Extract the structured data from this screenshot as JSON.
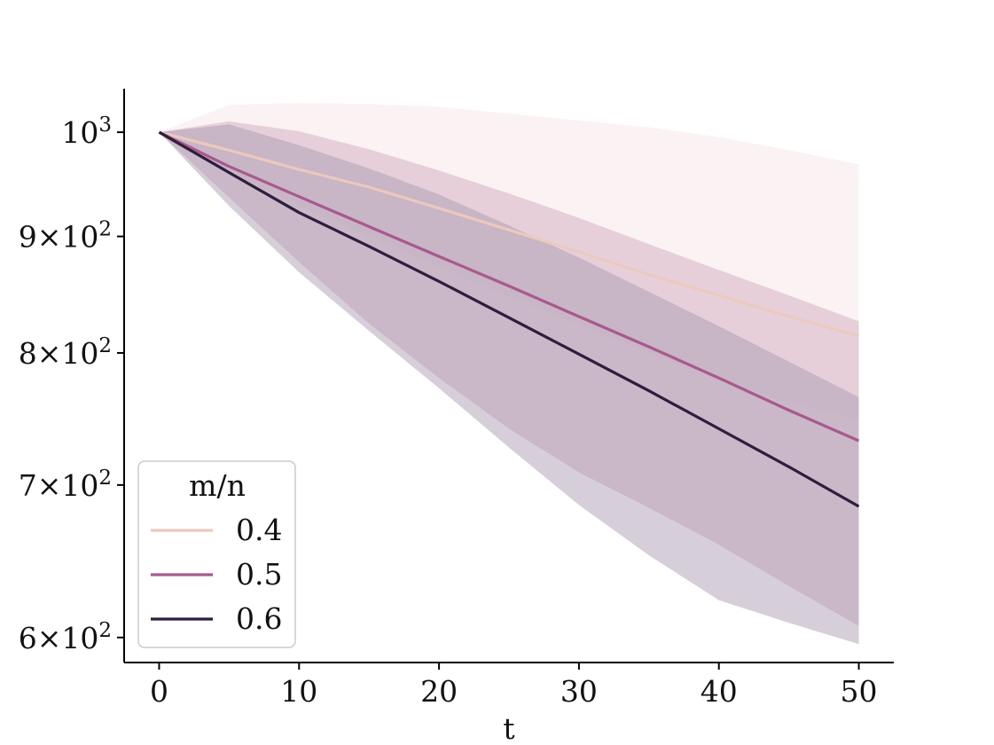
{
  "chart_data": {
    "type": "line",
    "xlabel": "t",
    "ylabel": "",
    "xlim": [
      -2.5,
      52.5
    ],
    "ylim": [
      585,
      1045
    ],
    "yscale": "log",
    "x_ticks": [
      0,
      10,
      20,
      30,
      40,
      50
    ],
    "x_tick_labels": [
      "0",
      "10",
      "20",
      "30",
      "40",
      "50"
    ],
    "y_ticks": [
      {
        "value": 1000,
        "base": "10",
        "exp": "3",
        "mult": ""
      },
      {
        "value": 900,
        "mult": "9",
        "base": "10",
        "exp": "2"
      },
      {
        "value": 800,
        "mult": "8",
        "base": "10",
        "exp": "2"
      },
      {
        "value": 700,
        "mult": "7",
        "base": "10",
        "exp": "2"
      },
      {
        "value": 600,
        "mult": "6",
        "base": "10",
        "exp": "2"
      }
    ],
    "legend": {
      "title": "m/n",
      "placement": "lower-left"
    },
    "series": [
      {
        "name": "0.4",
        "color": "#ecc9bd",
        "band_color": "#f4e2e4",
        "x": [
          0,
          5,
          10,
          15,
          20,
          25,
          30,
          35,
          40,
          45,
          50
        ],
        "y": [
          1000,
          982,
          963,
          946,
          926,
          906,
          886,
          866,
          848,
          830,
          814
        ],
        "upper": [
          1000,
          1028,
          1030,
          1029,
          1026,
          1019,
          1012,
          1005,
          995,
          982,
          968
        ],
        "lower": [
          1000,
          960,
          928,
          900,
          872,
          847,
          823,
          800,
          778,
          761,
          747
        ]
      },
      {
        "name": "0.5",
        "color": "#a8598d",
        "band_color": "#cfa3bb",
        "x": [
          0,
          5,
          10,
          15,
          20,
          25,
          30,
          35,
          40,
          45,
          50
        ],
        "y": [
          1000,
          966,
          937,
          909,
          882,
          856,
          830,
          805,
          780,
          755,
          732
        ],
        "upper": [
          1000,
          1011,
          1001,
          983,
          962,
          940,
          917,
          893,
          870,
          848,
          826
        ],
        "lower": [
          1000,
          936,
          877,
          824,
          780,
          741,
          709,
          684,
          659,
          632,
          607
        ]
      },
      {
        "name": "0.6",
        "color": "#2d1e3e",
        "band_color": "#a395ae",
        "x": [
          0,
          5,
          10,
          15,
          20,
          25,
          30,
          35,
          40,
          45,
          50
        ],
        "y": [
          1000,
          960,
          922,
          891,
          860,
          829,
          799,
          770,
          741,
          713,
          685
        ],
        "upper": [
          1000,
          1008,
          987,
          964,
          939,
          910,
          881,
          851,
          822,
          793,
          765
        ],
        "lower": [
          1000,
          928,
          868,
          818,
          772,
          727,
          686,
          652,
          623,
          609,
          596
        ]
      }
    ]
  }
}
